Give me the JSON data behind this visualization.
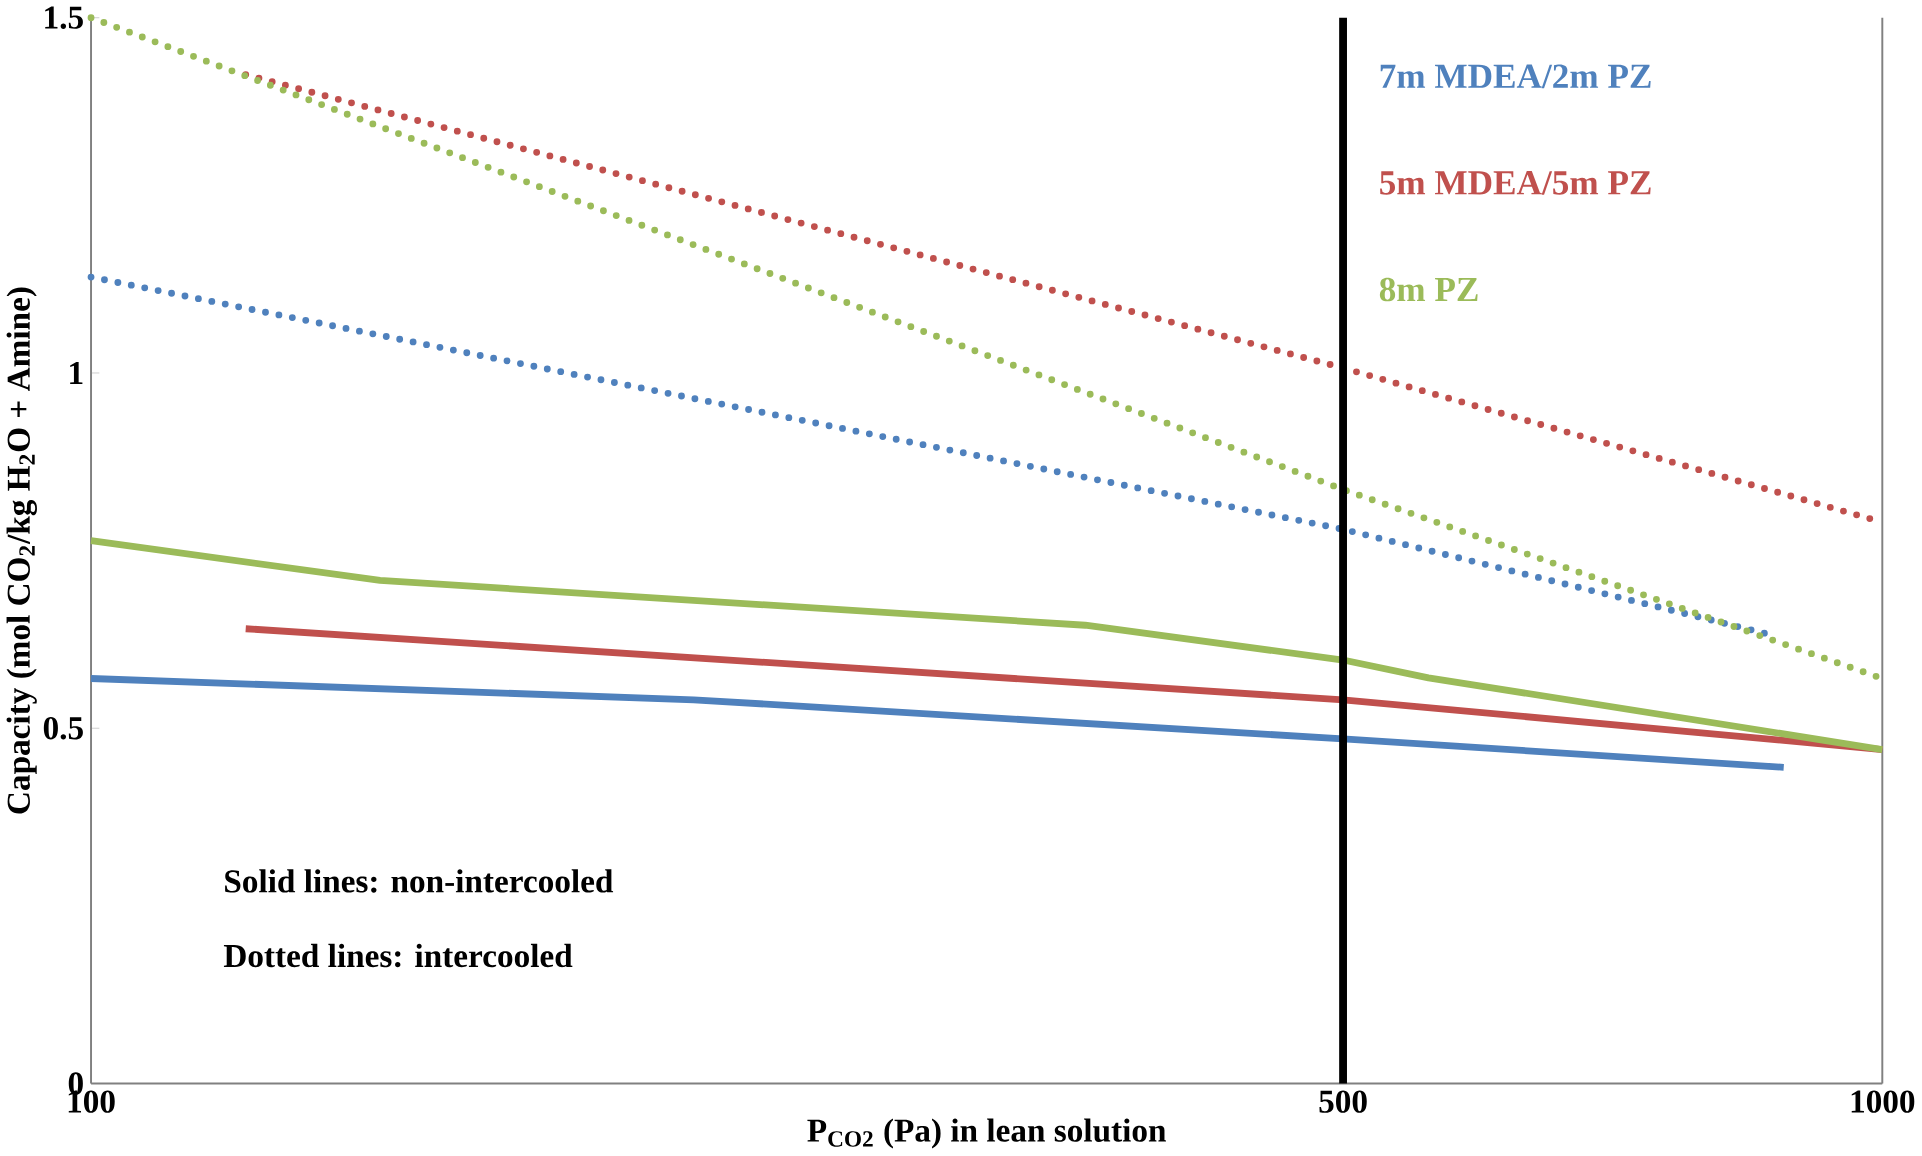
{
  "chart_data": {
    "type": "line",
    "xlabel": "P$_{CO2}$ (Pa) in lean solution",
    "ylabel": "Capacity (mol CO$_{2}$/kg H$_{2}$O + Amine)",
    "log": "x",
    "xlim": [
      100,
      1000
    ],
    "xticks": [
      100,
      500,
      1000
    ],
    "ylim": [
      0,
      1.5
    ],
    "yticks": [
      0,
      0.5,
      1,
      1.5
    ],
    "series": [
      {
        "name": "7m MDEA/2m PZ",
        "color": "#4f81bd",
        "line_style": "solid",
        "x": [
          100,
          217,
          500,
          881
        ],
        "values": [
          0.57,
          0.54,
          0.485,
          0.445
        ]
      },
      {
        "name": "5m MDEA/5m PZ",
        "color": "#c0504d",
        "line_style": "solid",
        "x": [
          122,
          500,
          1000
        ],
        "values": [
          0.64,
          0.54,
          0.47
        ]
      },
      {
        "name": "8m PZ",
        "color": "#9bbb59",
        "line_style": "solid",
        "x": [
          100,
          145,
          359,
          500,
          558,
          1000
        ],
        "values": [
          0.764,
          0.708,
          0.645,
          0.596,
          0.571,
          0.47
        ]
      },
      {
        "color": "#4f81bd",
        "line_style": "dotted",
        "x": [
          100,
          500,
          862
        ],
        "values": [
          1.135,
          0.78,
          0.633
        ]
      },
      {
        "color": "#c0504d",
        "line_style": "dotted",
        "x": [
          122,
          500,
          1000
        ],
        "values": [
          1.42,
          1.007,
          0.79
        ]
      },
      {
        "color": "#9bbb59",
        "line_style": "dotted",
        "x": [
          100,
          500,
          1000
        ],
        "values": [
          1.5,
          0.836,
          0.57
        ]
      }
    ],
    "ref_lines": [
      {
        "axis": "x",
        "value": 500,
        "color": "#000000"
      }
    ],
    "annotations": [
      "Solid lines: non-intercooled",
      "Dotted lines: intercooled"
    ]
  }
}
